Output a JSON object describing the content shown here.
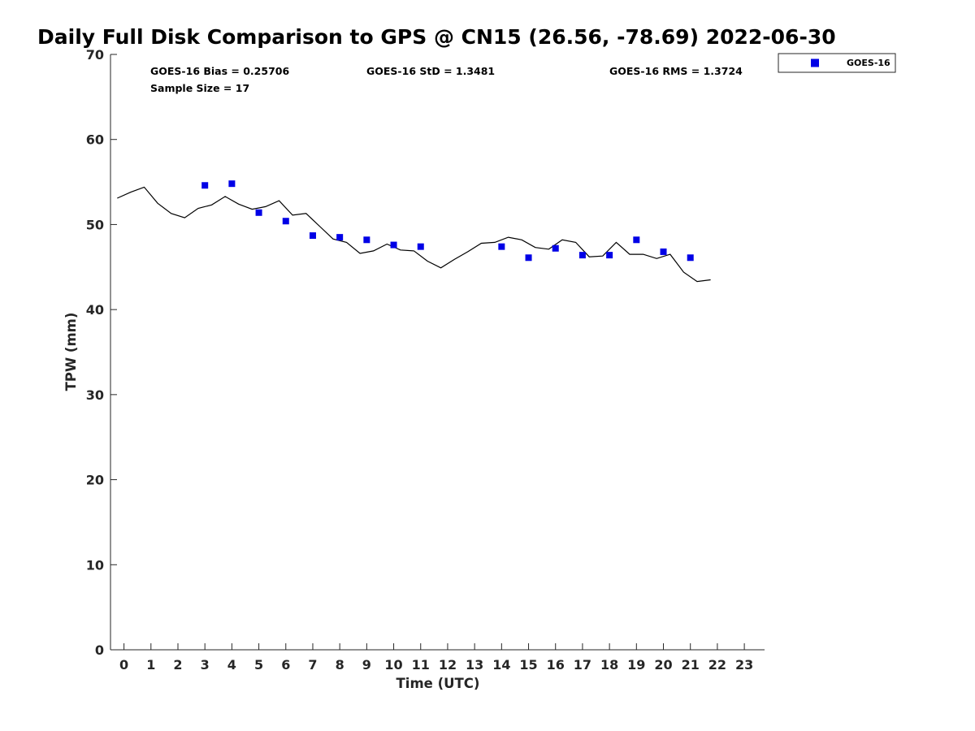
{
  "chart_data": {
    "type": "scatter",
    "title": "Daily Full Disk Comparison to GPS @ CN15 (26.56, -78.69) 2022-06-30",
    "xlabel": "Time (UTC)",
    "ylabel": "TPW (mm)",
    "xlim": [
      -0.5,
      23.75
    ],
    "ylim": [
      0,
      70
    ],
    "xticks": [
      0,
      1,
      2,
      3,
      4,
      5,
      6,
      7,
      8,
      9,
      10,
      11,
      12,
      13,
      14,
      15,
      16,
      17,
      18,
      19,
      20,
      21,
      22,
      23
    ],
    "yticks": [
      0,
      10,
      20,
      30,
      40,
      50,
      60,
      70
    ],
    "grid": false,
    "stats": {
      "bias": "GOES-16 Bias = 0.25706",
      "std": "GOES-16 StD = 1.3481",
      "rms": "GOES-16 RMS = 1.3724",
      "sample_size": "Sample Size = 17"
    },
    "legend": {
      "position": "top-right-outside",
      "entries": [
        "GOES-16"
      ]
    },
    "colors": {
      "goes16": "#0000e6",
      "gps_line": "#000000"
    },
    "series": [
      {
        "name": "GOES-16",
        "type": "scatter",
        "marker": "square",
        "x": [
          3,
          4,
          5,
          6,
          7,
          8,
          9,
          10,
          11,
          14,
          15,
          16,
          17,
          18,
          19,
          20,
          21
        ],
        "y": [
          54.6,
          54.8,
          51.4,
          50.4,
          48.7,
          48.5,
          48.2,
          47.6,
          47.4,
          47.4,
          46.1,
          47.2,
          46.4,
          46.4,
          48.2,
          46.8,
          46.1
        ]
      },
      {
        "type": "line",
        "x": [
          -0.25,
          0.25,
          0.75,
          1.25,
          1.75,
          2.25,
          2.75,
          3.25,
          3.75,
          4.25,
          4.75,
          5.25,
          5.75,
          6.25,
          6.75,
          7.25,
          7.75,
          8.25,
          8.75,
          9.25,
          9.75,
          10.25,
          10.75,
          11.25,
          11.75,
          12.25,
          12.75,
          13.25,
          13.75,
          14.25,
          14.75,
          15.25,
          15.75,
          16.25,
          16.75,
          17.25,
          17.75,
          18.25,
          18.75,
          19.25,
          19.75,
          20.25,
          20.75,
          21.25,
          21.75
        ],
        "y": [
          53.1,
          53.8,
          54.4,
          52.5,
          51.3,
          50.8,
          51.9,
          52.3,
          53.3,
          52.4,
          51.8,
          52.1,
          52.8,
          51.1,
          51.3,
          49.8,
          48.3,
          47.9,
          46.6,
          46.9,
          47.7,
          47.0,
          46.9,
          45.7,
          44.9,
          45.9,
          46.8,
          47.8,
          47.9,
          48.5,
          48.2,
          47.3,
          47.1,
          48.2,
          47.9,
          46.2,
          46.3,
          47.9,
          46.5,
          46.5,
          46.0,
          46.5,
          44.4,
          43.3,
          43.5
        ]
      }
    ]
  }
}
